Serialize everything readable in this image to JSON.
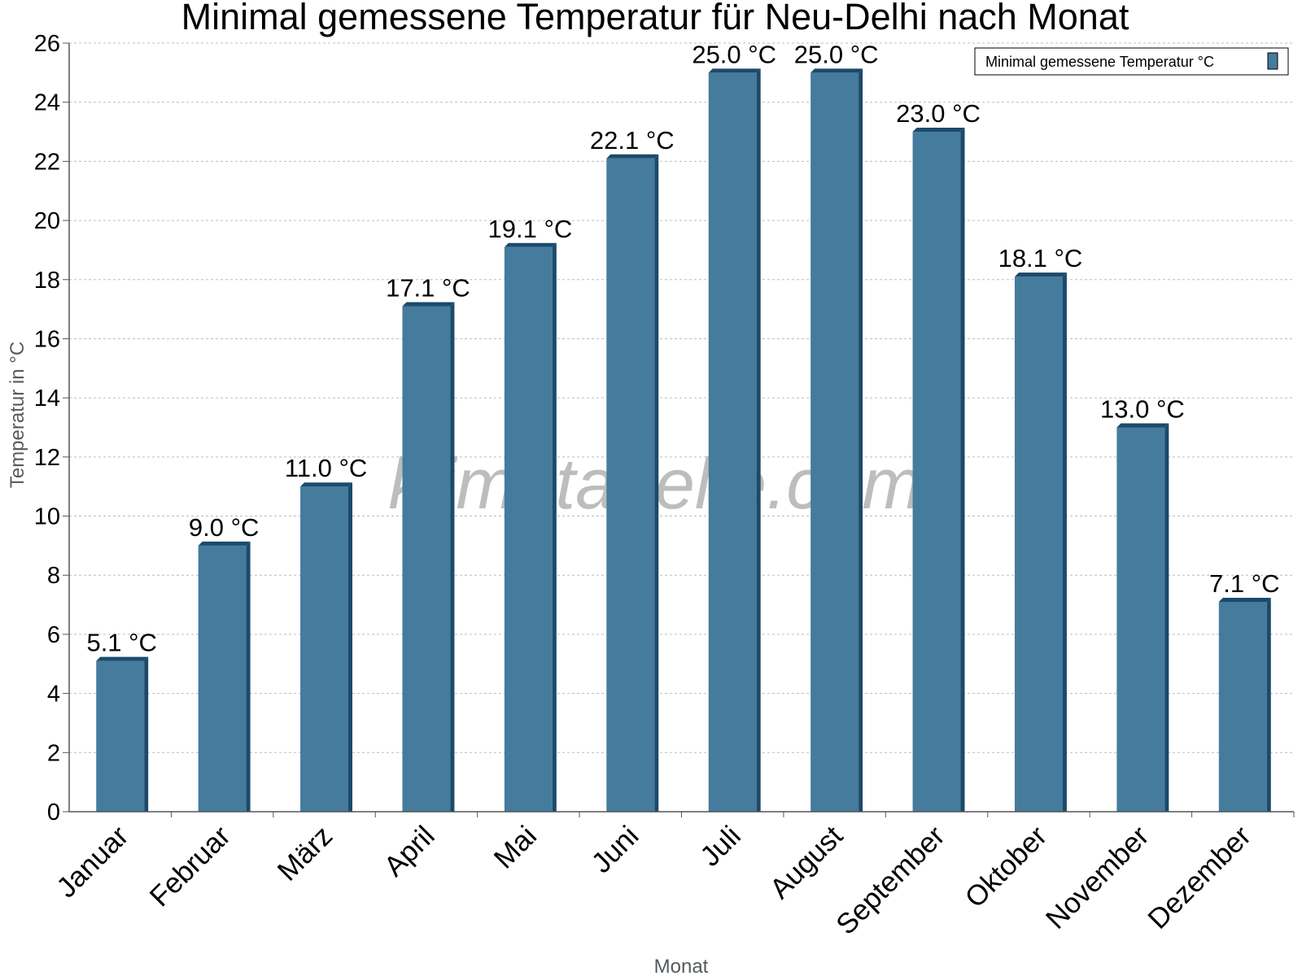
{
  "chart_data": {
    "type": "bar",
    "title": "Minimal gemessene Temperatur für Neu-Delhi nach Monat",
    "xlabel": "Monat",
    "ylabel": "Temperatur in °C",
    "categories": [
      "Januar",
      "Februar",
      "März",
      "April",
      "Mai",
      "Juni",
      "Juli",
      "August",
      "September",
      "Oktober",
      "November",
      "Dezember"
    ],
    "series": [
      {
        "name": "Minimal gemessene Temperatur °C",
        "values": [
          5.1,
          9.0,
          11.0,
          17.1,
          19.1,
          22.1,
          25.0,
          25.0,
          23.0,
          18.1,
          13.0,
          7.1
        ],
        "labels": [
          "5.1 °C",
          "9.0 °C",
          "11.0 °C",
          "17.1 °C",
          "19.1 °C",
          "22.1 °C",
          "25.0 °C",
          "25.0 °C",
          "23.0 °C",
          "18.1 °C",
          "13.0 °C",
          "7.1 °C"
        ],
        "color": "#457b9d",
        "edge_color": "#1b4a6b"
      }
    ],
    "ylim": [
      0,
      26
    ],
    "yticks": [
      "0",
      "2",
      "4",
      "6",
      "8",
      "10",
      "12",
      "14",
      "16",
      "18",
      "20",
      "22",
      "24",
      "26"
    ],
    "grid": true,
    "legend_position": "top-right"
  },
  "watermark": "klimatabelle.com"
}
